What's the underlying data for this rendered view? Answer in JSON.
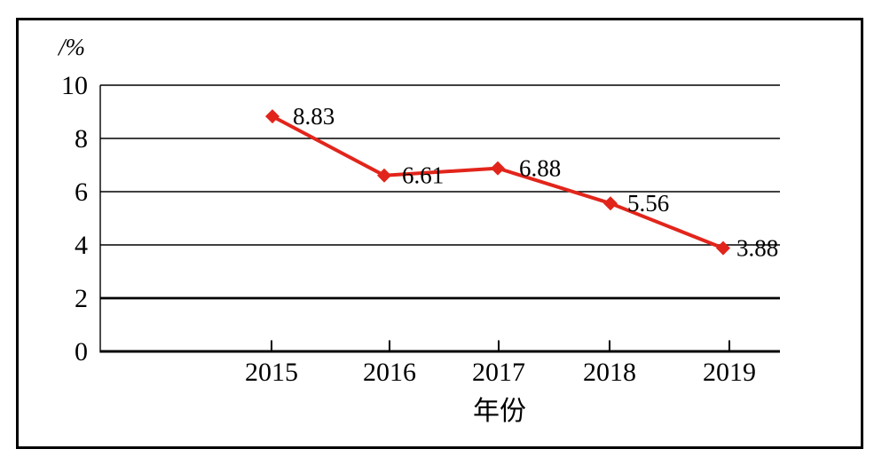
{
  "chart_data": {
    "type": "line",
    "title": "",
    "categories": [
      "2015",
      "2016",
      "2017",
      "2018",
      "2019"
    ],
    "values": [
      8.83,
      6.61,
      6.88,
      5.56,
      3.88
    ],
    "point_labels": [
      "8.83",
      "6.61",
      "6.88",
      "5.56",
      "3.88"
    ],
    "xlabel": "年份",
    "ylabel": "/%",
    "ylim": [
      0,
      10
    ],
    "yticks": [
      0,
      2,
      4,
      6,
      8,
      10
    ],
    "ytick_labels": [
      "0",
      "2",
      "4",
      "6",
      "8",
      "10"
    ],
    "grid": "horizontal",
    "legend": "none",
    "line_color": "#e2251b",
    "axis_color": "#000000",
    "marker_shape": "diamond",
    "bold_gridline_values": [
      0,
      2
    ]
  }
}
